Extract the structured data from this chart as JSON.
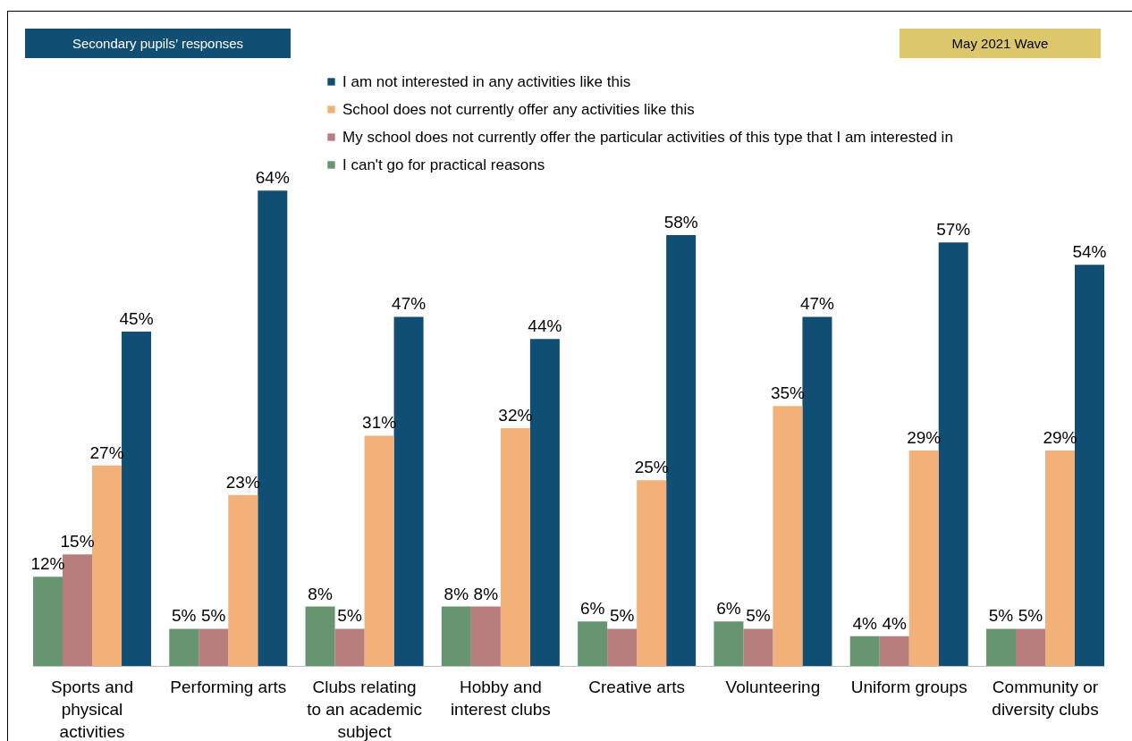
{
  "chart_data": {
    "type": "bar",
    "annotations": [
      "Secondary pupils’ responses",
      "May 2021 Wave"
    ],
    "categories": [
      "Sports and physical activities",
      "Performing arts",
      "Clubs relating to an academic subject",
      "Hobby and interest clubs",
      "Creative arts",
      "Volunteering",
      "Uniform groups",
      "Community or diversity clubs"
    ],
    "series": [
      {
        "name": "I am not interested in any activities like this",
        "color": "#114e73",
        "values": [
          45,
          64,
          47,
          44,
          58,
          47,
          57,
          54
        ],
        "value_labels": [
          "45%",
          "64%",
          "47%",
          "44%",
          "58%",
          "47%",
          "57%",
          "54%"
        ]
      },
      {
        "name": "School does not currently offer any activities like this",
        "color": "#f2b179",
        "values": [
          27,
          23,
          31,
          32,
          25,
          35,
          29,
          29
        ],
        "value_labels": [
          "27%",
          "23%",
          "31%",
          "32%",
          "25%",
          "35%",
          "29%",
          "29%"
        ]
      },
      {
        "name": "My school does not currently offer the particular activities of this type that I am interested in",
        "color": "#b87e7e",
        "values": [
          15,
          5,
          5,
          8,
          5,
          5,
          4,
          5
        ],
        "value_labels": [
          "15%",
          "5%",
          "5%",
          "8%",
          "5%",
          "5%",
          "4%",
          "5%"
        ]
      },
      {
        "name": "I can't go for practical reasons",
        "color": "#679570",
        "values": [
          12,
          5,
          8,
          8,
          6,
          6,
          4,
          5
        ],
        "value_labels": [
          "12%",
          "5%",
          "8%",
          "8%",
          "6%",
          "6%",
          "4%",
          "5%"
        ]
      }
    ],
    "legend": "top",
    "data_labels": true
  }
}
